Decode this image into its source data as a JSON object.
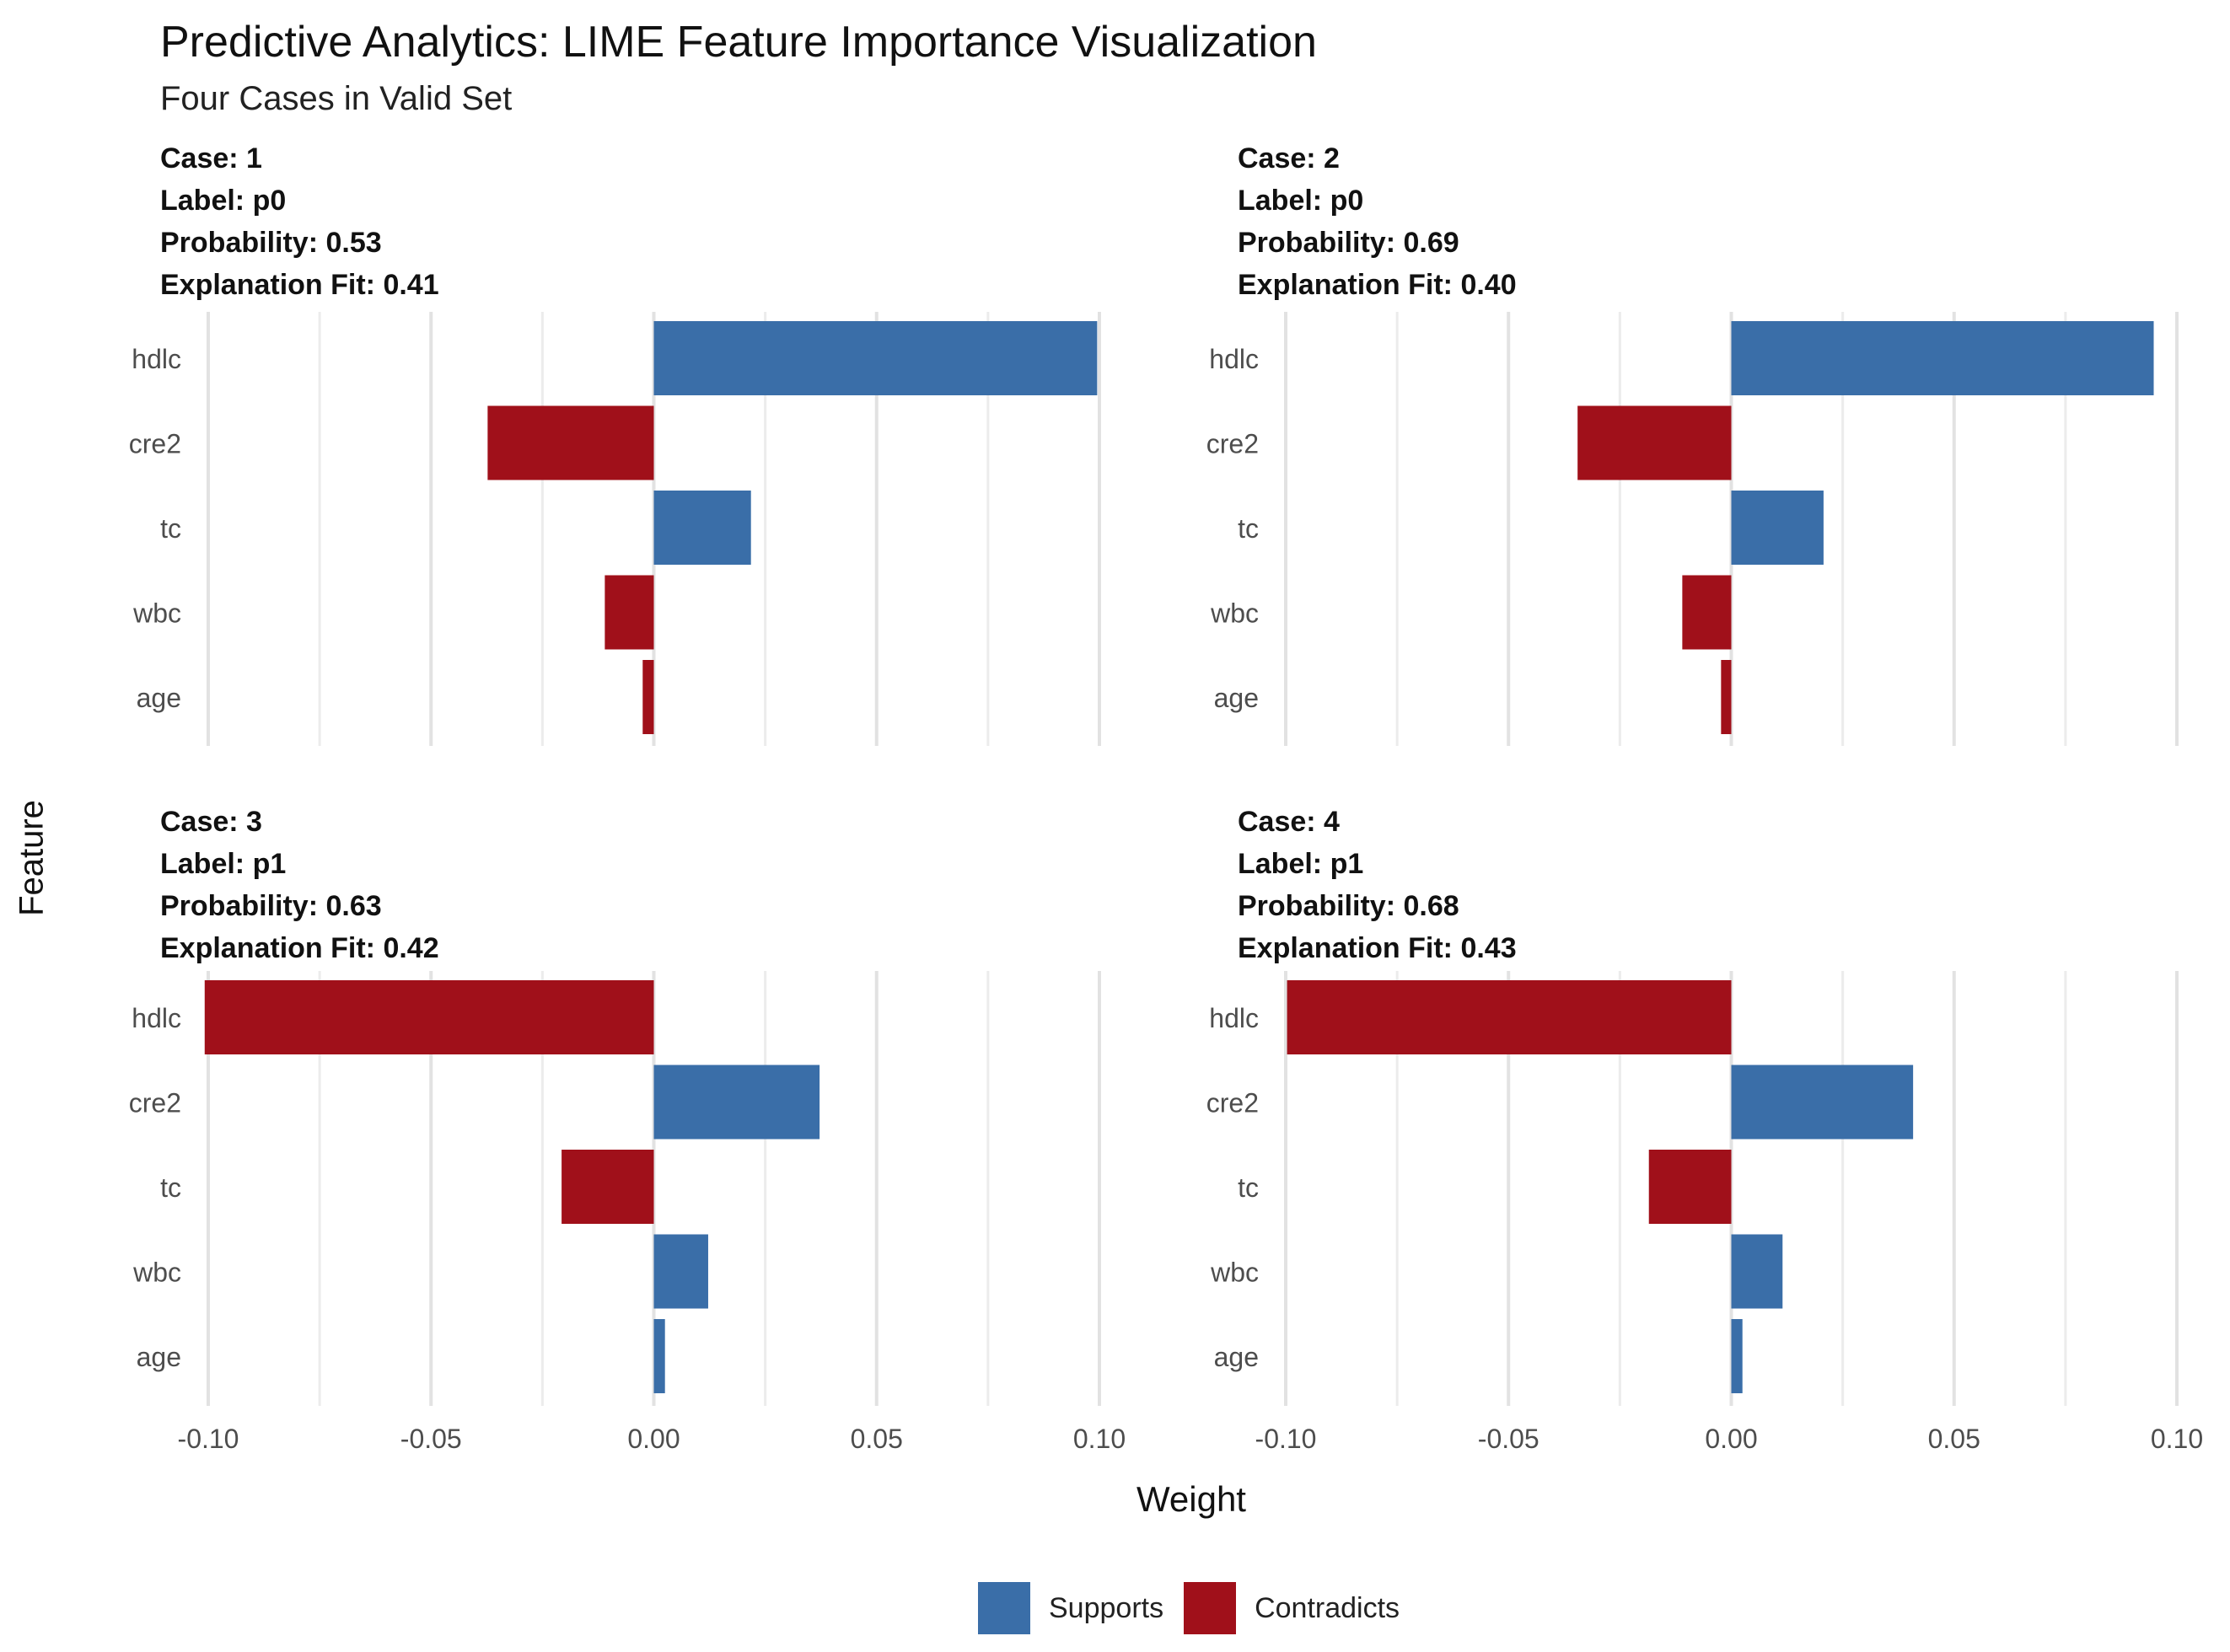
{
  "chart_data": {
    "type": "bar",
    "orientation": "horizontal",
    "title": "Predictive Analytics: LIME Feature Importance Visualization",
    "subtitle": "Four Cases in Valid Set",
    "xlabel": "Weight",
    "ylabel": "Feature",
    "xlim": [
      -0.1,
      0.1
    ],
    "xticks": [
      "-0.10",
      "-0.05",
      "0.00",
      "0.05",
      "0.10"
    ],
    "xtick_values": [
      -0.1,
      -0.05,
      0.0,
      0.05,
      0.1
    ],
    "categories": [
      "hdlc",
      "cre2",
      "tc",
      "wbc",
      "age"
    ],
    "legend": {
      "position": "bottom",
      "items": [
        {
          "name": "Supports",
          "color": "#3A6EA8"
        },
        {
          "name": "Contradicts",
          "color": "#A0101A"
        }
      ]
    },
    "panels": [
      {
        "case_text": "Case: 1",
        "label_text": "Label: p0",
        "probability_text": "Probability: 0.53",
        "fit_text": "Explanation Fit: 0.41",
        "values": [
          0.0995,
          -0.0373,
          0.0218,
          -0.011,
          -0.0025
        ]
      },
      {
        "case_text": "Case: 2",
        "label_text": "Label: p0",
        "probability_text": "Probability: 0.69",
        "fit_text": "Explanation Fit: 0.40",
        "values": [
          0.0948,
          -0.0345,
          0.0207,
          -0.011,
          -0.0023
        ]
      },
      {
        "case_text": "Case: 3",
        "label_text": "Label: p1",
        "probability_text": "Probability: 0.63",
        "fit_text": "Explanation Fit: 0.42",
        "values": [
          -0.1008,
          0.0372,
          -0.0207,
          0.0122,
          0.0025
        ]
      },
      {
        "case_text": "Case: 4",
        "label_text": "Label: p1",
        "probability_text": "Probability: 0.68",
        "fit_text": "Explanation Fit: 0.43",
        "values": [
          -0.0997,
          0.0408,
          -0.0185,
          0.0115,
          0.0025
        ]
      }
    ]
  }
}
